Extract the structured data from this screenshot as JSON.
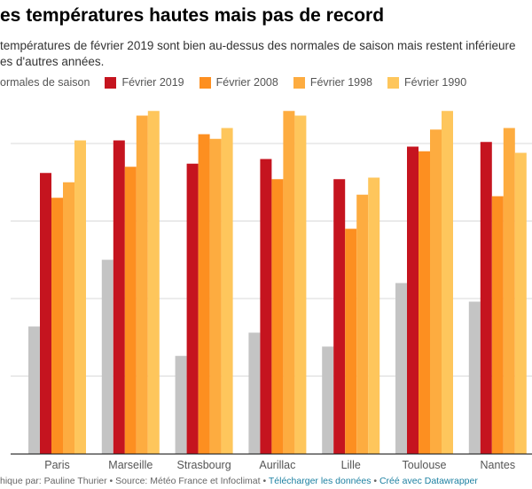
{
  "header": {
    "title": "es températures hautes mais pas de record",
    "subtitle_line1": "températures de février 2019 sont bien au-dessus des normales de saison mais restent inférieure",
    "subtitle_line2": "es d'autres années."
  },
  "footer": {
    "credit": "hique par: Pauline Thurier • Source: Météo France et Infoclimat • ",
    "download_link": "Télécharger les données",
    "sep": " • ",
    "made_with_link": "Créé avec Datawrapper"
  },
  "chart_data": {
    "type": "bar",
    "categories": [
      "Paris",
      "Marseille",
      "Strasbourg",
      "Aurillac",
      "Lille",
      "Toulouse",
      "Nantes"
    ],
    "series": [
      {
        "name": "ormales de saison",
        "color": "#c4c4c4",
        "values": [
          8.2,
          12.5,
          6.3,
          7.8,
          6.9,
          11.0,
          9.8
        ]
      },
      {
        "name": "Février 2019",
        "color": "#c5141f",
        "values": [
          18.1,
          20.2,
          18.7,
          19.0,
          17.7,
          19.8,
          20.1
        ]
      },
      {
        "name": "Février 2008",
        "color": "#fd8f20",
        "values": [
          16.5,
          18.5,
          20.6,
          17.7,
          14.5,
          19.5,
          16.6
        ]
      },
      {
        "name": "Février 1998",
        "color": "#fdac40",
        "values": [
          17.5,
          21.8,
          20.3,
          22.1,
          16.7,
          20.9,
          21.0
        ]
      },
      {
        "name": "Février 1990",
        "color": "#fec65c",
        "values": [
          20.2,
          22.1,
          21.0,
          21.8,
          17.8,
          22.1,
          19.4
        ]
      }
    ],
    "ylim": [
      0,
      22.5
    ],
    "gridlines": [
      5,
      10,
      15,
      20
    ],
    "grid": true,
    "legend": "top-left"
  }
}
